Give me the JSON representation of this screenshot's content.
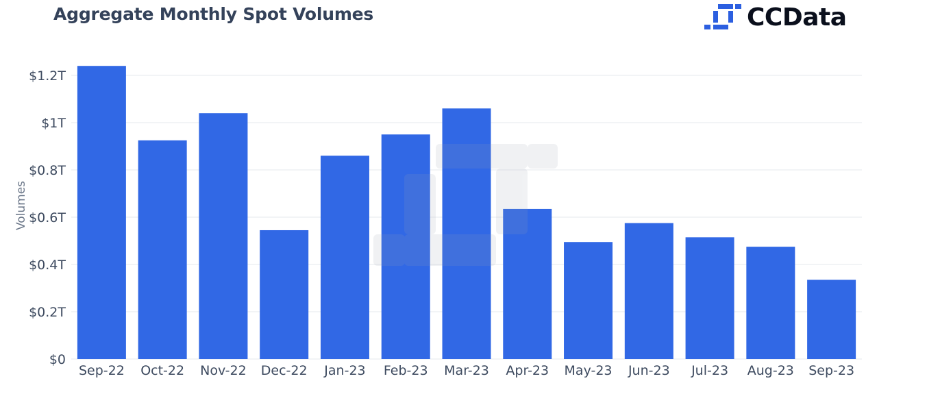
{
  "header": {
    "title": "Aggregate Monthly Spot Volumes",
    "brand_name": "CCData"
  },
  "colors": {
    "bar": "#3168e5",
    "grid": "#e6e8ed",
    "watermark": "#9aa3b0",
    "brand_blue": "#2c5fe0"
  },
  "chart_data": {
    "type": "bar",
    "title": "Aggregate Monthly Spot Volumes",
    "xlabel": "",
    "ylabel": "Volumes",
    "categories": [
      "Sep-22",
      "Oct-22",
      "Nov-22",
      "Dec-22",
      "Jan-23",
      "Feb-23",
      "Mar-23",
      "Apr-23",
      "May-23",
      "Jun-23",
      "Jul-23",
      "Aug-23",
      "Sep-23"
    ],
    "series": [
      {
        "values": [
          1.24,
          0.925,
          1.04,
          0.545,
          0.86,
          0.95,
          1.06,
          0.635,
          0.495,
          0.575,
          0.515,
          0.475,
          0.335
        ]
      }
    ],
    "unit": "trillions USD",
    "ylim": [
      0,
      1.2
    ],
    "yticks": [
      0,
      0.2,
      0.4,
      0.6,
      0.8,
      1,
      1.2
    ],
    "ytick_labels": [
      "$0",
      "$0.2T",
      "$0.4T",
      "$0.6T",
      "$0.8T",
      "$1T",
      "$1.2T"
    ],
    "grid": true,
    "legend": "none"
  }
}
